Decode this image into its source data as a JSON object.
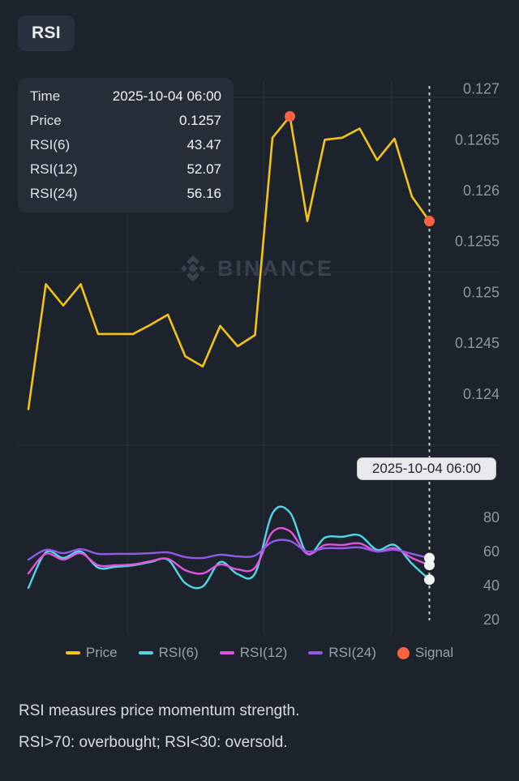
{
  "indicator_badge": "RSI",
  "watermark_text": "BINANCE",
  "crosshair_label": "2025-10-04 06:00",
  "tooltip": {
    "rows": [
      {
        "label": "Time",
        "value": "2025-10-04 06:00"
      },
      {
        "label": "Price",
        "value": "0.1257"
      },
      {
        "label": "RSI(6)",
        "value": "43.47"
      },
      {
        "label": "RSI(12)",
        "value": "52.07"
      },
      {
        "label": "RSI(24)",
        "value": "56.16"
      }
    ]
  },
  "legend": [
    {
      "label": "Price",
      "color": "#F3C317",
      "swatch": "dash"
    },
    {
      "label": "RSI(6)",
      "color": "#52D5E5",
      "swatch": "dash"
    },
    {
      "label": "RSI(12)",
      "color": "#DF55DF",
      "swatch": "dash"
    },
    {
      "label": "RSI(24)",
      "color": "#9259E8",
      "swatch": "dash"
    },
    {
      "label": "Signal",
      "color": "#F96243",
      "swatch": "dot"
    }
  ],
  "description_lines": [
    "RSI measures price momentum strength.",
    "RSI>70: overbought; RSI<30: oversold."
  ],
  "colors": {
    "background": "#1D232D",
    "panel": "#262D39",
    "axis_text": "#8D95A3",
    "gridline": "#2A303B",
    "crosshair": "#C9CDD3",
    "price_line": "#F3C317",
    "rsi6_line": "#52D5E5",
    "rsi12_line": "#DF55DF",
    "rsi24_line": "#9259E8",
    "signal_dot": "#F96243",
    "endpoint_dot": "#F3F4F6",
    "watermark": "#3A4250"
  },
  "chart_data": [
    {
      "type": "line",
      "title": "Price panel",
      "xlabel": "",
      "ylabel": "Price",
      "grid": true,
      "legend_position": "bottom",
      "ylim": [
        0.1238,
        0.1272
      ],
      "y_axis_ticks": [
        {
          "label": "0.127",
          "value": 0.127
        },
        {
          "label": "0.1265",
          "value": 0.1265
        },
        {
          "label": "0.126",
          "value": 0.126
        },
        {
          "label": "0.1255",
          "value": 0.1255
        },
        {
          "label": "0.125",
          "value": 0.125
        },
        {
          "label": "0.1245",
          "value": 0.1245
        },
        {
          "label": "0.124",
          "value": 0.124
        }
      ],
      "series": [
        {
          "name": "Price",
          "color": "#F3C317",
          "smooth": false,
          "values": [
            0.12385,
            0.12508,
            0.12487,
            0.12508,
            0.12459,
            0.12459,
            0.12459,
            0.12468,
            0.12478,
            0.12437,
            0.12427,
            0.12467,
            0.12447,
            0.12458,
            0.12652,
            0.12673,
            0.1257,
            0.1265,
            0.12652,
            0.12661,
            0.1263,
            0.12651,
            0.12594,
            0.1257
          ]
        }
      ],
      "signals": [
        {
          "index": 15,
          "value": 0.12673
        },
        {
          "index": 23,
          "value": 0.1257
        }
      ]
    },
    {
      "type": "line",
      "title": "RSI panel",
      "xlabel": "",
      "ylabel": "RSI",
      "grid": true,
      "ylim": [
        15,
        95
      ],
      "y_axis_ticks": [
        {
          "label": "80",
          "value": 80
        },
        {
          "label": "60",
          "value": 60
        },
        {
          "label": "40",
          "value": 40
        },
        {
          "label": "20",
          "value": 20
        }
      ],
      "series": [
        {
          "name": "RSI(6)",
          "color": "#52D5E5",
          "smooth": true,
          "values": [
            38.6,
            59.5,
            56.2,
            60.0,
            50.5,
            51.0,
            51.9,
            53.8,
            55.2,
            41.4,
            39.5,
            53.8,
            46.7,
            47.1,
            82.4,
            82.9,
            58.6,
            68.1,
            68.6,
            69.5,
            61.0,
            63.8,
            52.8,
            43.47
          ]
        },
        {
          "name": "RSI(12)",
          "color": "#DF55DF",
          "smooth": true,
          "values": [
            47.1,
            58.6,
            55.2,
            59.0,
            51.9,
            51.9,
            52.4,
            54.3,
            55.7,
            49.0,
            47.1,
            52.4,
            49.5,
            50.5,
            71.4,
            71.9,
            58.6,
            63.8,
            63.8,
            64.8,
            60.0,
            61.9,
            56.2,
            52.07
          ]
        },
        {
          "name": "RSI(24)",
          "color": "#9259E8",
          "smooth": true,
          "values": [
            55.2,
            61.0,
            59.0,
            61.4,
            58.6,
            58.6,
            58.6,
            59.0,
            59.5,
            56.7,
            56.2,
            58.1,
            57.1,
            57.6,
            65.7,
            66.2,
            60.0,
            61.9,
            61.9,
            62.4,
            60.0,
            61.0,
            58.6,
            56.16
          ]
        }
      ],
      "endpoint_dots": true
    }
  ]
}
